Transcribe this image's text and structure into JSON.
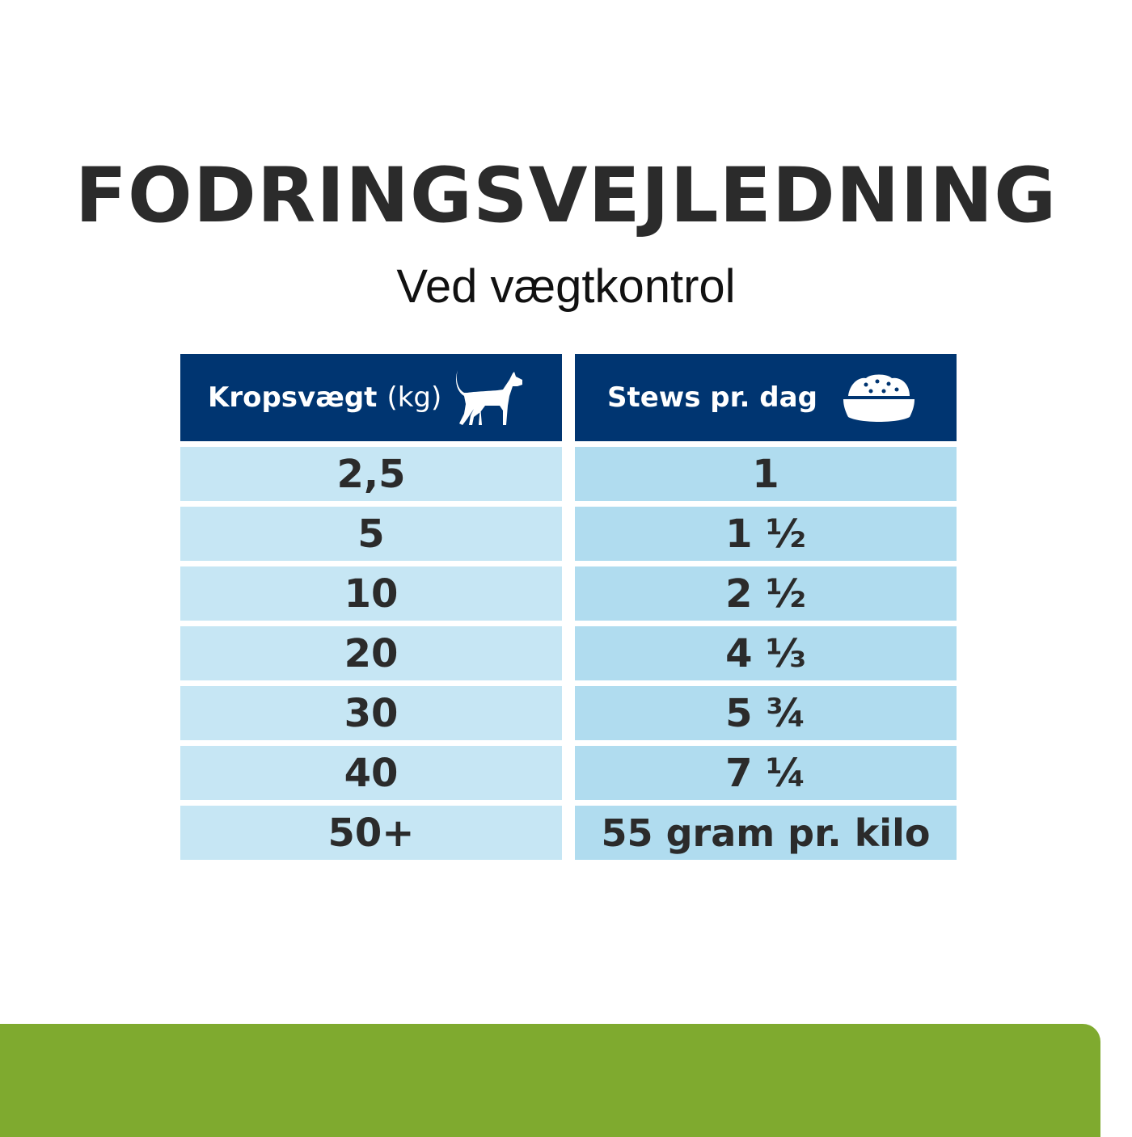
{
  "title": "FODRINGSVEJLEDNING",
  "subtitle": "Ved vægtkontrol",
  "table": {
    "headers": [
      {
        "label": "Kropsvægt",
        "unit": "(kg)",
        "icon": "dog-icon"
      },
      {
        "label": "Stews pr. dag",
        "icon": "food-bowl-icon"
      }
    ],
    "rows": [
      [
        "2,5",
        "1"
      ],
      [
        "5",
        "1 ½"
      ],
      [
        "10",
        "2 ½"
      ],
      [
        "20",
        "4 ⅓"
      ],
      [
        "30",
        "5 ¾"
      ],
      [
        "40",
        "7 ¼"
      ],
      [
        "50+",
        "55 gram pr. kilo"
      ]
    ]
  },
  "colors": {
    "header": "#003571",
    "left_cell": "#c6e6f4",
    "right_cell": "#b0dcef",
    "text": "#2b2b2b",
    "footer_band": "#7faa2f"
  }
}
